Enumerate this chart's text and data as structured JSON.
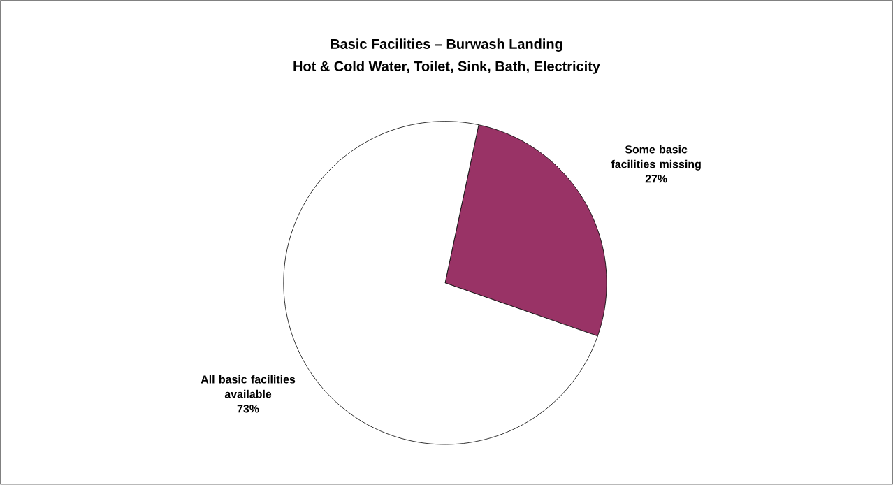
{
  "chart_data": {
    "type": "pie",
    "title": "Basic Facilities – Burwash Landing",
    "subtitle": "Hot & Cold Water, Toilet, Sink, Bath, Electricity",
    "categories": [
      "Some basic facilities missing",
      "All basic facilities available"
    ],
    "values": [
      27,
      73
    ],
    "colors": [
      "#993366",
      "#ffffff"
    ],
    "value_labels": [
      "27%",
      "73%"
    ]
  }
}
